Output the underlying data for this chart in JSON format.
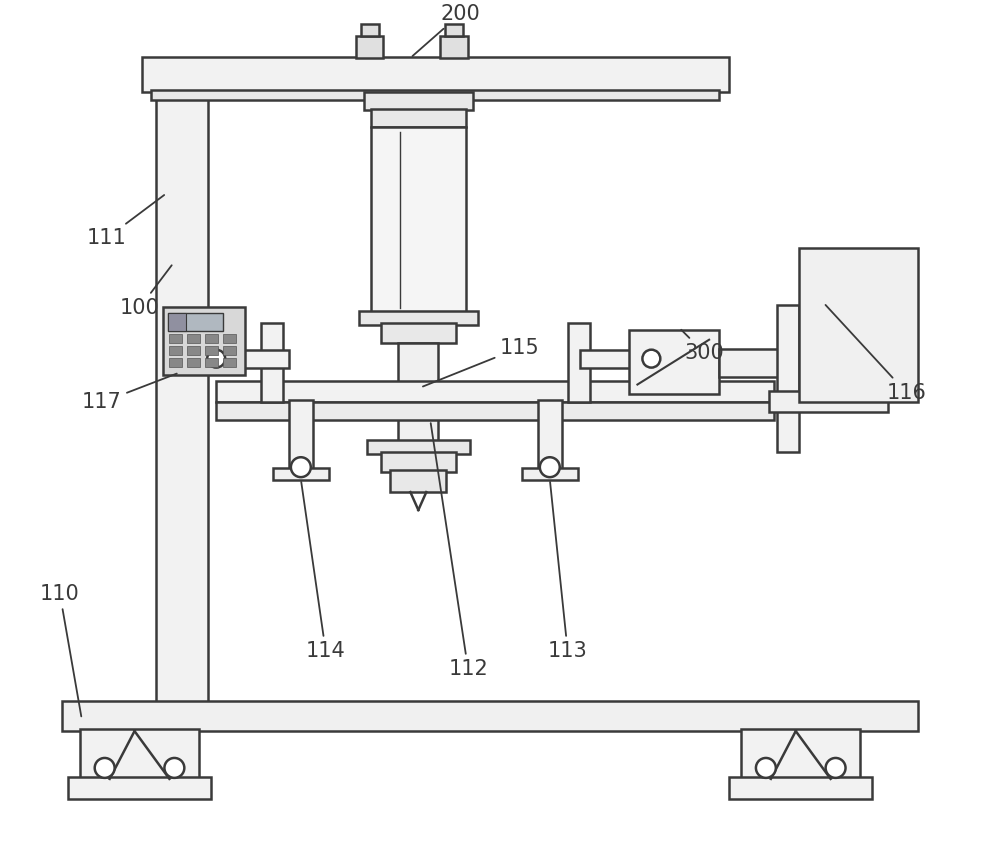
{
  "bg_color": "#ffffff",
  "line_color": "#3a3a3a",
  "line_width": 1.8,
  "figsize": [
    10.0,
    8.42
  ],
  "dpi": 100
}
